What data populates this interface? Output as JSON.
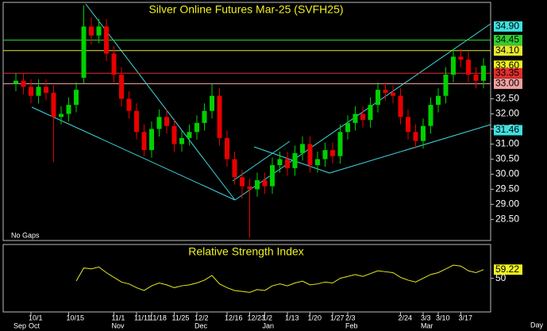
{
  "chart_data": [
    {
      "type": "candlestick",
      "title": "Silver Online Futures Mar-25 (SVFH25)",
      "note": "No Gaps",
      "categories": [
        null,
        null,
        "10/1",
        null,
        null,
        null,
        null,
        "10/15",
        null,
        null,
        null,
        null,
        null,
        "11/1",
        null,
        null,
        "11/11",
        null,
        "11/18",
        null,
        null,
        "11/25",
        null,
        null,
        "12/2",
        null,
        null,
        null,
        "12/16",
        null,
        null,
        "12/23",
        null,
        "1/2",
        null,
        null,
        "1/13",
        null,
        null,
        "1/20",
        null,
        null,
        "1/27",
        null,
        "2/3",
        null,
        null,
        null,
        null,
        null,
        null,
        "2/24",
        null,
        null,
        "3/3",
        null,
        "3/10",
        null,
        null,
        "3/17",
        null,
        null,
        null
      ],
      "month_labels": [
        "Sep",
        null,
        "Oct",
        null,
        null,
        null,
        null,
        null,
        null,
        null,
        null,
        null,
        null,
        "Nov",
        null,
        null,
        null,
        null,
        null,
        null,
        null,
        null,
        null,
        null,
        "Dec",
        null,
        null,
        null,
        null,
        null,
        null,
        null,
        null,
        "Jan",
        null,
        null,
        null,
        null,
        null,
        null,
        null,
        null,
        null,
        null,
        "Feb",
        null,
        null,
        null,
        null,
        null,
        null,
        null,
        null,
        null,
        "Mar",
        null,
        null,
        null,
        null,
        null,
        null,
        null,
        null
      ],
      "x_unit_label": "Day",
      "open": [
        33.0,
        33.1,
        32.9,
        32.6,
        32.9,
        32.7,
        31.9,
        32.0,
        32.3,
        33.2,
        34.9,
        34.6,
        34.9,
        34.0,
        33.3,
        32.5,
        32.1,
        31.4,
        30.8,
        31.5,
        31.9,
        31.6,
        31.0,
        31.2,
        31.4,
        31.7,
        32.1,
        32.6,
        31.2,
        30.5,
        29.9,
        29.6,
        29.5,
        29.8,
        29.6,
        30.3,
        30.5,
        30.2,
        30.7,
        31.0,
        30.3,
        30.5,
        30.8,
        30.6,
        31.4,
        31.7,
        32.0,
        31.8,
        32.3,
        32.8,
        32.7,
        32.6,
        31.9,
        31.4,
        31.1,
        31.6,
        32.3,
        32.6,
        33.3,
        33.9,
        33.8,
        33.3,
        33.1
      ],
      "high": [
        33.35,
        33.35,
        33.15,
        33.15,
        33.15,
        32.95,
        32.25,
        32.55,
        33.05,
        35.6,
        35.2,
        35.15,
        35.15,
        34.25,
        33.55,
        32.75,
        32.35,
        31.65,
        31.75,
        32.15,
        32.15,
        31.85,
        31.45,
        31.65,
        31.95,
        32.35,
        33.0,
        32.85,
        31.45,
        30.75,
        30.15,
        29.85,
        30.05,
        30.05,
        30.55,
        30.75,
        30.75,
        30.95,
        31.25,
        31.25,
        30.75,
        31.05,
        31.05,
        31.65,
        31.95,
        32.25,
        32.25,
        32.55,
        33.05,
        33.05,
        32.95,
        32.85,
        32.15,
        31.65,
        31.85,
        32.55,
        32.85,
        33.55,
        34.15,
        34.15,
        34.05,
        33.55,
        33.85
      ],
      "low": [
        32.75,
        32.65,
        32.35,
        32.35,
        32.45,
        30.4,
        31.65,
        31.75,
        32.05,
        33.0,
        34.3,
        34.35,
        33.75,
        33.05,
        32.25,
        31.85,
        31.15,
        30.6,
        30.55,
        31.25,
        31.35,
        30.75,
        30.75,
        30.95,
        31.15,
        31.45,
        31.85,
        30.95,
        30.25,
        29.65,
        29.2,
        27.9,
        29.25,
        29.35,
        29.35,
        30.05,
        29.95,
        29.95,
        30.45,
        30.05,
        30.05,
        30.25,
        30.35,
        30.35,
        31.15,
        31.45,
        31.55,
        31.55,
        32.05,
        32.45,
        32.35,
        31.65,
        31.15,
        30.85,
        30.85,
        31.35,
        32.05,
        32.35,
        33.05,
        33.55,
        33.05,
        32.85,
        32.85
      ],
      "close": [
        33.1,
        32.9,
        32.6,
        32.9,
        32.7,
        31.9,
        32.0,
        32.3,
        32.8,
        34.9,
        34.6,
        34.9,
        34.0,
        33.3,
        32.5,
        32.1,
        31.4,
        30.8,
        31.5,
        31.9,
        31.6,
        31.0,
        31.2,
        31.4,
        31.7,
        32.1,
        32.6,
        31.2,
        30.5,
        29.9,
        29.6,
        29.5,
        29.8,
        29.6,
        30.3,
        30.5,
        30.2,
        30.7,
        31.0,
        30.3,
        30.5,
        30.8,
        30.6,
        31.4,
        31.7,
        32.0,
        31.8,
        32.3,
        32.8,
        32.7,
        32.6,
        31.9,
        31.4,
        31.1,
        31.6,
        32.3,
        32.6,
        33.3,
        33.9,
        33.8,
        33.3,
        33.1,
        33.6
      ],
      "up_color": "#00d000",
      "down_color": "#e80000",
      "ylim": [
        27.8,
        35.7
      ],
      "yticks": [
        {
          "value": 28.5,
          "label": "28.50"
        },
        {
          "value": 29,
          "label": "29.00"
        },
        {
          "value": 29.5,
          "label": "29.50"
        },
        {
          "value": 30,
          "label": "30.00"
        },
        {
          "value": 30.5,
          "label": "30.50"
        },
        {
          "value": 31,
          "label": "31.00"
        },
        {
          "value": 31.5,
          "label": "31.50"
        },
        {
          "value": 32,
          "label": "32.00"
        },
        {
          "value": 32.5,
          "label": "32.50"
        }
      ],
      "levels": [
        {
          "value": 34.9,
          "label": "34.90",
          "color": "#40e0e0",
          "line": false
        },
        {
          "value": 34.45,
          "label": "34.45",
          "color": "#30d030",
          "line": true
        },
        {
          "value": 34.1,
          "label": "34.10",
          "color": "#e8e830",
          "line": true
        },
        {
          "value": 33.6,
          "label": "33.60",
          "color": "#f0f020",
          "line": false
        },
        {
          "value": 33.35,
          "label": "33.35",
          "color": "#e03030",
          "line": true
        },
        {
          "value": 33.0,
          "label": "33.00",
          "color": "#f0a0a0",
          "line": true
        },
        {
          "value": 31.46,
          "label": "31.46",
          "color": "#40e0e0",
          "line": false
        }
      ]
    },
    {
      "type": "line",
      "title": "Relative Strength Index",
      "color": "#e8e820",
      "values": [
        null,
        null,
        null,
        null,
        null,
        null,
        null,
        null,
        47,
        61,
        60,
        62,
        56,
        51,
        46,
        44,
        40,
        37,
        42,
        45,
        43,
        40,
        42,
        43,
        45,
        48,
        53,
        44,
        40,
        37,
        36,
        35,
        38,
        37,
        42,
        44,
        42,
        45,
        47,
        43,
        44,
        46,
        45,
        50,
        52,
        54,
        52,
        55,
        58,
        57,
        56,
        51,
        48,
        46,
        50,
        54,
        56,
        60,
        64,
        63,
        58,
        56,
        59.22
      ],
      "ylim": [
        15,
        86
      ],
      "yticks": [
        50
      ],
      "levels": [
        {
          "value": 59.22,
          "label": "59.22",
          "color": "#f0f020"
        }
      ]
    }
  ]
}
